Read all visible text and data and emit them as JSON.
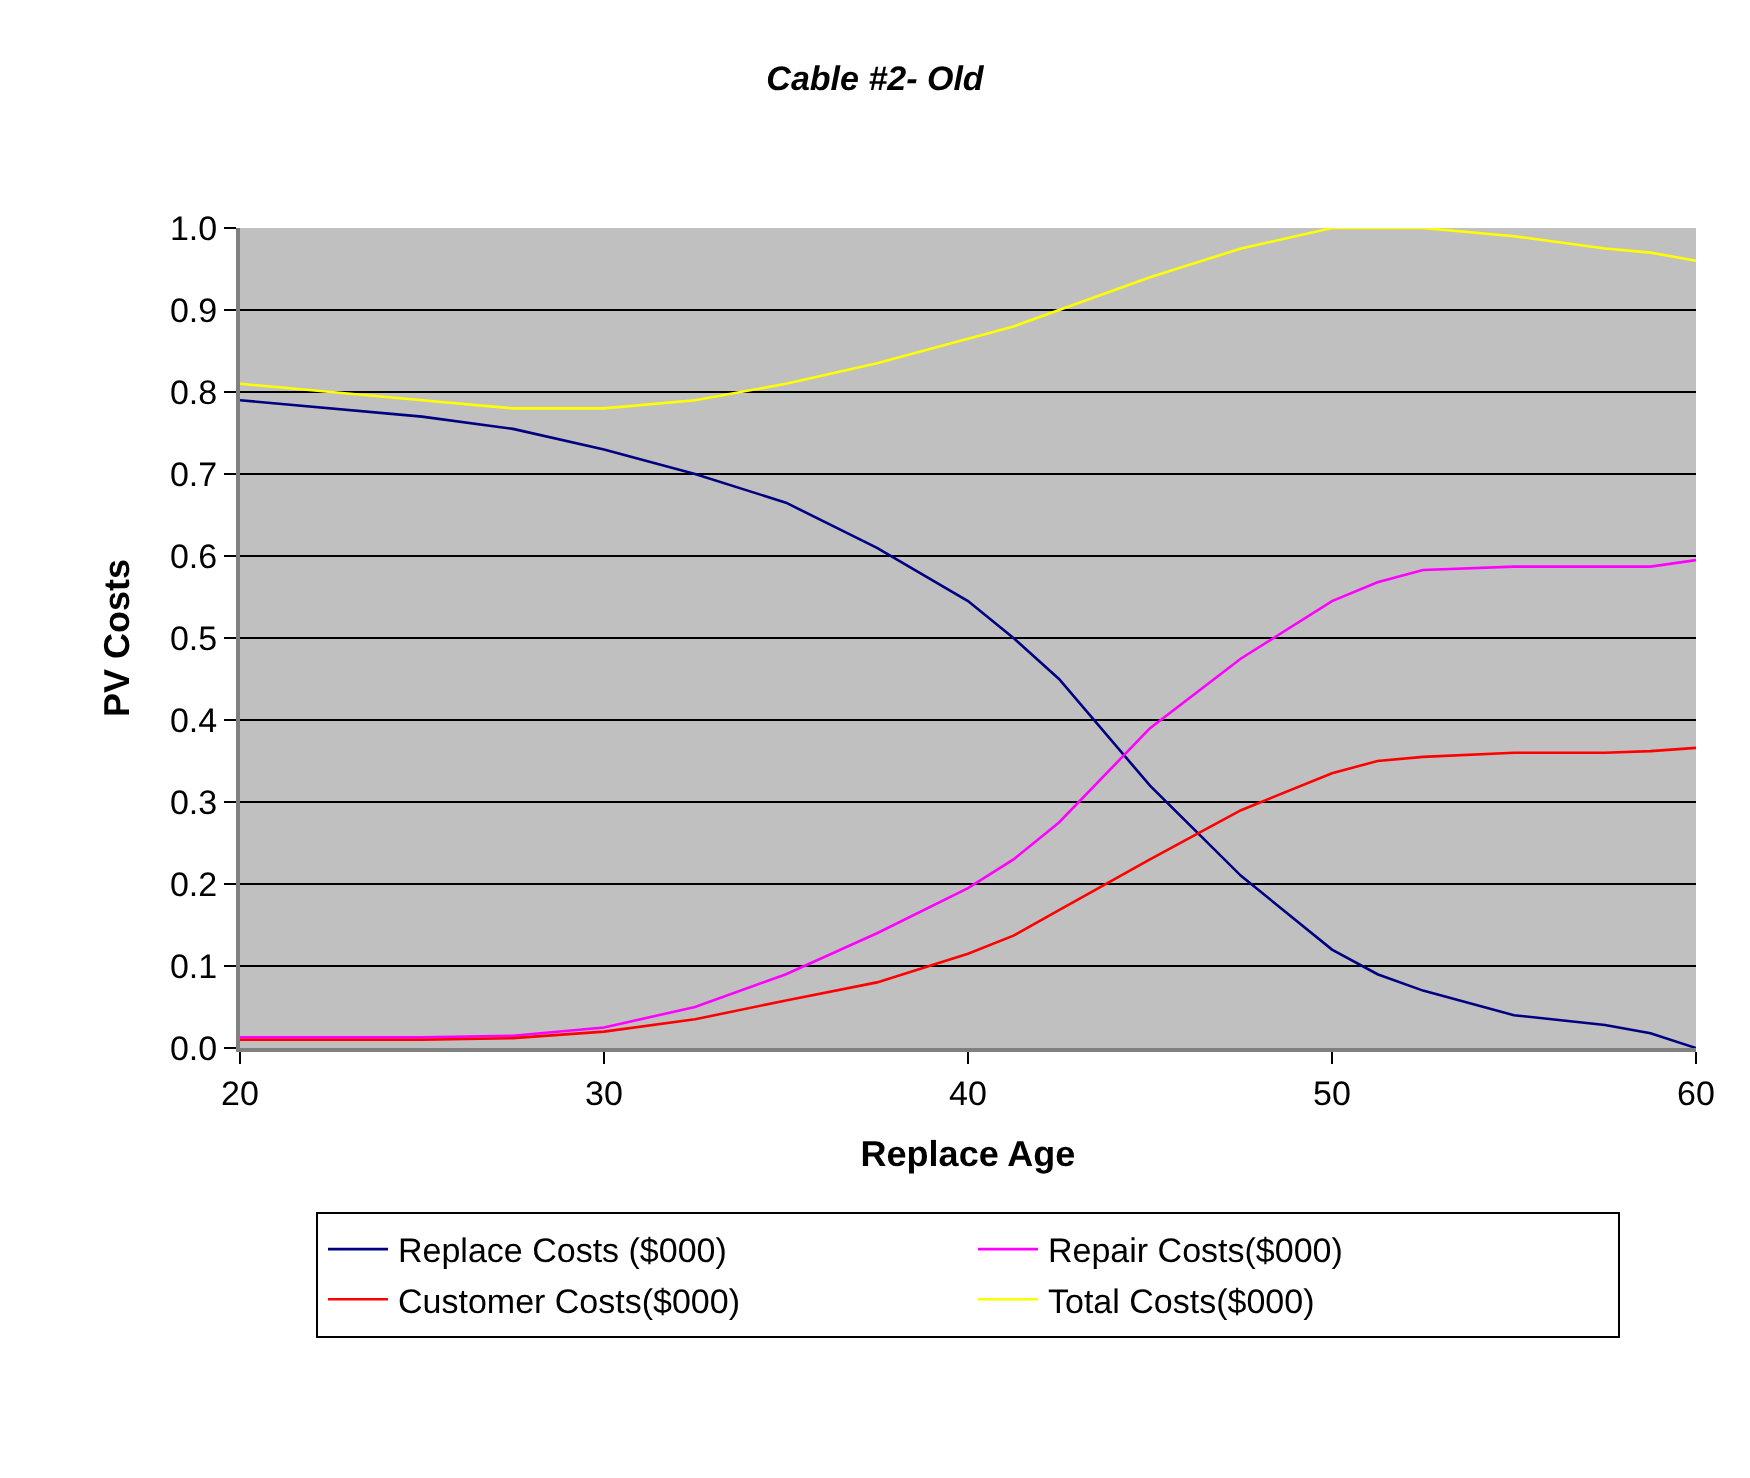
{
  "chart_data": {
    "type": "line",
    "title": "Cable #2- Old",
    "xlabel": "Replace Age",
    "ylabel": "PV Costs",
    "x": [
      20,
      25,
      27.5,
      30,
      32.5,
      35,
      37.5,
      40,
      41.25,
      42.5,
      45,
      47.5,
      50,
      51.25,
      52.5,
      55,
      57.5,
      58.75,
      60
    ],
    "series": [
      {
        "name": "Replace Costs ($000)",
        "color": "#000080",
        "values": [
          0.79,
          0.77,
          0.755,
          0.73,
          0.7,
          0.665,
          0.61,
          0.545,
          0.5,
          0.45,
          0.32,
          0.21,
          0.12,
          0.09,
          0.07,
          0.04,
          0.028,
          0.018,
          0.0
        ]
      },
      {
        "name": "Repair Costs($000)",
        "color": "#ff00ff",
        "values": [
          0.013,
          0.013,
          0.015,
          0.025,
          0.05,
          0.09,
          0.14,
          0.195,
          0.23,
          0.275,
          0.39,
          0.475,
          0.545,
          0.568,
          0.583,
          0.587,
          0.587,
          0.587,
          0.595
        ]
      },
      {
        "name": "Customer Costs($000)",
        "color": "#ff0000",
        "values": [
          0.01,
          0.01,
          0.012,
          0.02,
          0.035,
          0.058,
          0.08,
          0.115,
          0.137,
          0.168,
          0.23,
          0.29,
          0.335,
          0.35,
          0.355,
          0.36,
          0.36,
          0.362,
          0.366
        ]
      },
      {
        "name": "Total Costs($000)",
        "color": "#ffff00",
        "values": [
          0.81,
          0.79,
          0.78,
          0.78,
          0.79,
          0.81,
          0.835,
          0.865,
          0.88,
          0.9,
          0.94,
          0.975,
          1.0,
          1.0,
          1.0,
          0.99,
          0.975,
          0.97,
          0.96
        ]
      }
    ],
    "xlim": [
      20,
      60
    ],
    "xticks": [
      20,
      30,
      40,
      50,
      60
    ],
    "ylim": [
      0,
      1.0
    ],
    "yticks": [
      {
        "value": 0,
        "label": "0.0"
      },
      {
        "value": 0.1,
        "label": "0.1"
      },
      {
        "value": 0.2,
        "label": "0.2"
      },
      {
        "value": 0.3,
        "label": "0.3"
      },
      {
        "value": 0.4,
        "label": "0.4"
      },
      {
        "value": 0.5,
        "label": "0.5"
      },
      {
        "value": 0.6,
        "label": "0.6"
      },
      {
        "value": 0.7,
        "label": "0.7"
      },
      {
        "value": 0.8,
        "label": "0.8"
      },
      {
        "value": 0.9,
        "label": "0.9"
      },
      {
        "value": 1.0,
        "label": "1.0"
      }
    ],
    "grid": "y",
    "legend": "bottom",
    "marker": "none",
    "line_style": "solid"
  }
}
